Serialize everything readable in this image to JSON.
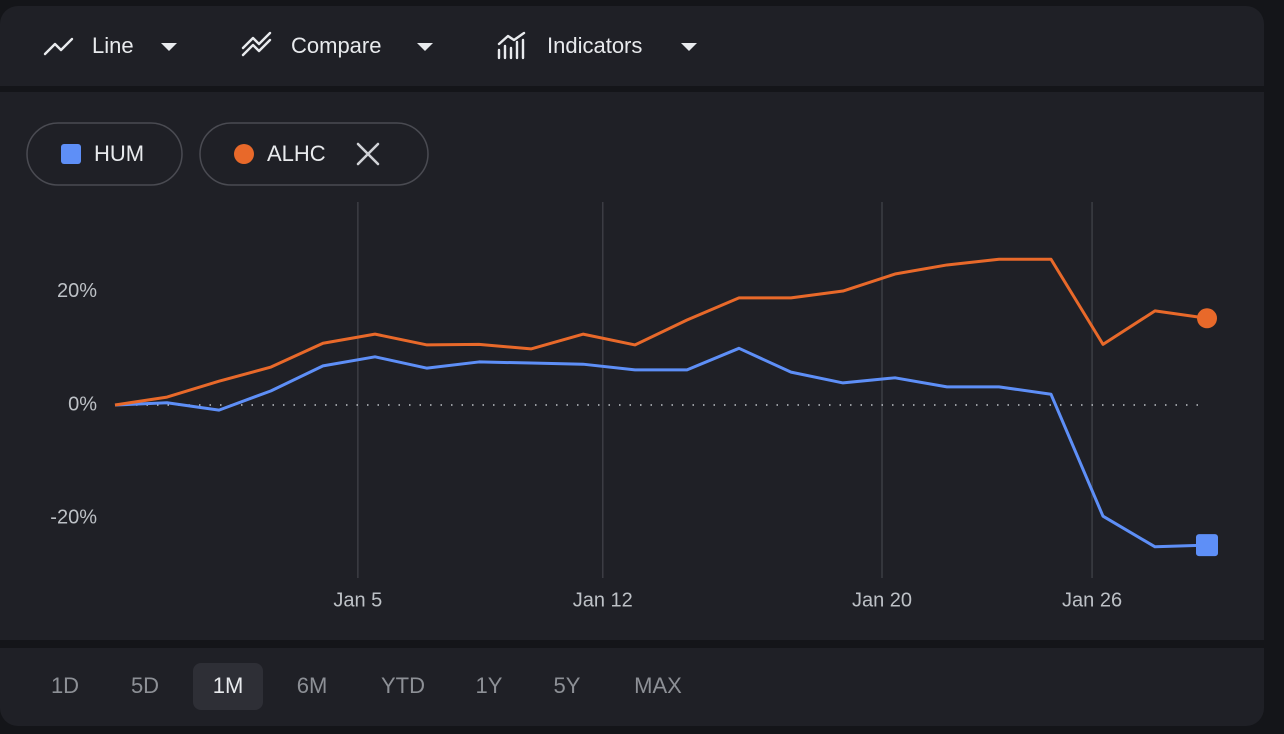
{
  "toolbar": {
    "items": [
      "Line",
      "Compare",
      "Indicators"
    ]
  },
  "chart_data": {
    "type": "line",
    "x": [
      0,
      1,
      2,
      3,
      4,
      5,
      6,
      7,
      8,
      9,
      10,
      11,
      12,
      13,
      14,
      15,
      16,
      17,
      18,
      19,
      20,
      21
    ],
    "xlim": [
      0,
      21
    ],
    "xticks": [
      {
        "value": 4.67,
        "label": "Jan 5"
      },
      {
        "value": 9.38,
        "label": "Jan 12"
      },
      {
        "value": 14.75,
        "label": "Jan 20"
      },
      {
        "value": 18.79,
        "label": "Jan 26"
      }
    ],
    "ylim": [
      -30.5,
      35.8
    ],
    "yticks": [
      {
        "value": -20,
        "label": "-20%"
      },
      {
        "value": 0,
        "label": "0%"
      },
      {
        "value": 20,
        "label": "20%"
      }
    ],
    "grid": true,
    "series": [
      {
        "name": "HUM",
        "color": "#5e8ff7",
        "marker": "square",
        "values": [
          0,
          0.4,
          -0.9,
          2.5,
          6.9,
          8.5,
          6.5,
          7.6,
          7.4,
          7.2,
          6.2,
          6.2,
          10,
          5.8,
          3.9,
          4.8,
          3.2,
          3.2,
          1.9,
          -19.6,
          -25,
          -24.7
        ]
      },
      {
        "name": "ALHC",
        "color": "#e8692a",
        "marker": "circle",
        "removable": true,
        "values": [
          0,
          1.4,
          4.2,
          6.7,
          10.9,
          12.5,
          10.6,
          10.7,
          9.9,
          12.5,
          10.6,
          15,
          18.9,
          18.9,
          20.1,
          23.1,
          24.7,
          25.7,
          25.7,
          10.7,
          16.6,
          15.3
        ]
      }
    ]
  },
  "ranges": {
    "items": [
      "1D",
      "5D",
      "1M",
      "6M",
      "YTD",
      "1Y",
      "5Y",
      "MAX"
    ],
    "selected": "1M"
  }
}
